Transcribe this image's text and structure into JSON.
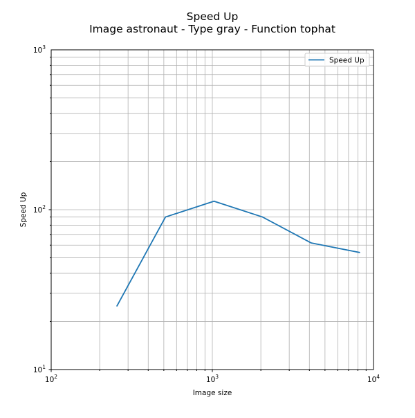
{
  "chart_data": {
    "type": "line",
    "title": "Speed Up",
    "subtitle": "Image astronaut - Type gray - Function tophat",
    "xlabel": "Image size",
    "ylabel": "Speed Up",
    "xscale": "log",
    "yscale": "log",
    "xlim": [
      100,
      10000
    ],
    "ylim": [
      10,
      1000
    ],
    "x_ticks": [
      {
        "value": 100,
        "base": "10",
        "exp": "2"
      },
      {
        "value": 1000,
        "base": "10",
        "exp": "3"
      },
      {
        "value": 10000,
        "base": "10",
        "exp": "4"
      }
    ],
    "y_ticks": [
      {
        "value": 10,
        "base": "10",
        "exp": "1"
      },
      {
        "value": 100,
        "base": "10",
        "exp": "2"
      },
      {
        "value": 1000,
        "base": "10",
        "exp": "3"
      }
    ],
    "grid": "major-and-minor",
    "legend_position": "upper right",
    "series": [
      {
        "name": "Speed Up",
        "color": "#1f77b4",
        "x": [
          256,
          512,
          1024,
          2048,
          4096,
          8192
        ],
        "y": [
          25,
          90,
          113,
          90,
          62,
          54
        ]
      }
    ]
  }
}
